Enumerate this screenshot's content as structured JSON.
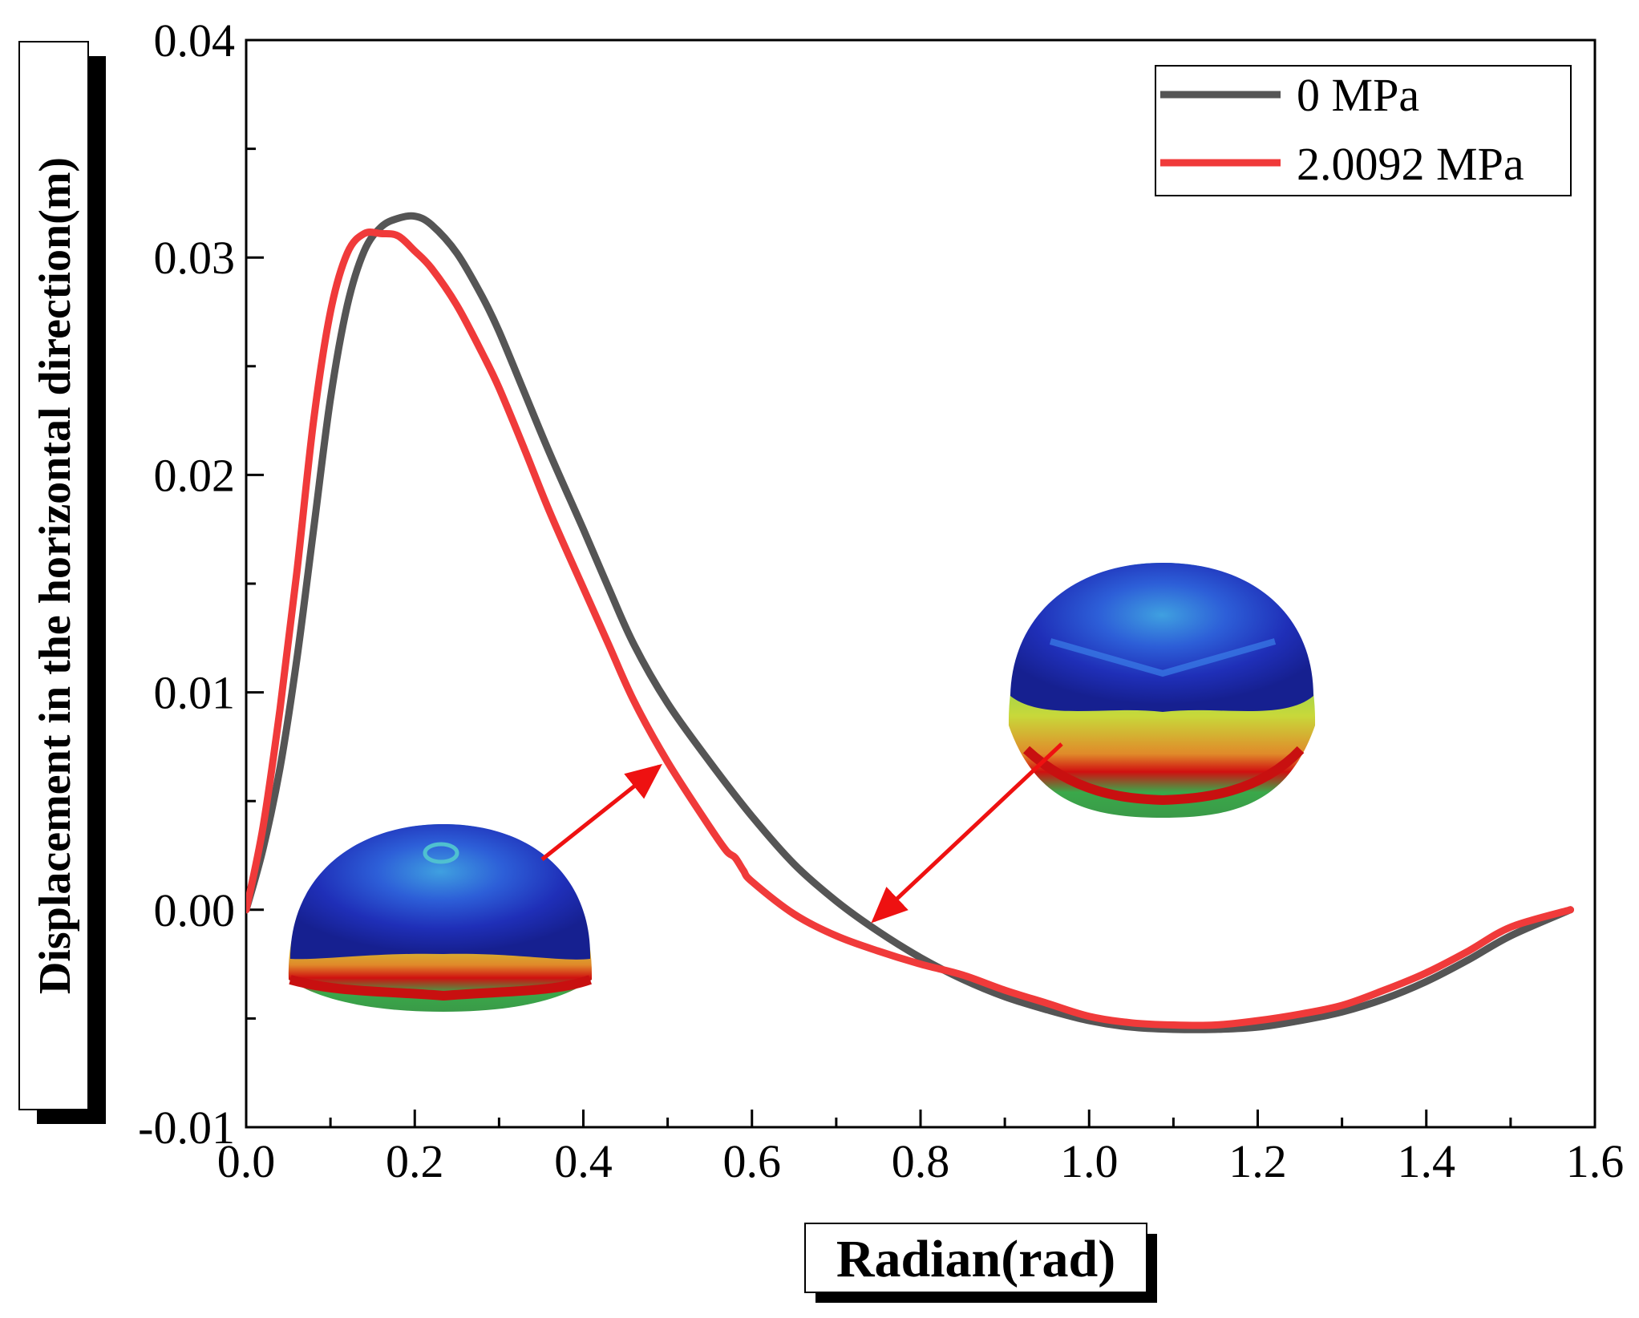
{
  "chart_data": {
    "type": "line",
    "title": "",
    "xlabel": "Radian(rad)",
    "ylabel": "Displacement in the horizontal direction(m)",
    "xlim": [
      0.0,
      1.6
    ],
    "ylim": [
      -0.01,
      0.04
    ],
    "x_ticks": [
      "0.0",
      "0.2",
      "0.4",
      "0.6",
      "0.8",
      "1.0",
      "1.2",
      "1.4",
      "1.6"
    ],
    "y_ticks": [
      "-0.01",
      "0.00",
      "0.01",
      "0.02",
      "0.03",
      "0.04"
    ],
    "x_tick_values": [
      0.0,
      0.2,
      0.4,
      0.6,
      0.8,
      1.0,
      1.2,
      1.4,
      1.6
    ],
    "y_tick_values": [
      -0.01,
      0.0,
      0.01,
      0.02,
      0.03,
      0.04
    ],
    "grid": false,
    "legend_position": "top-right",
    "series": [
      {
        "name": "0 MPa",
        "color": "#555555",
        "x": [
          0,
          0.02,
          0.04,
          0.06,
          0.08,
          0.1,
          0.12,
          0.14,
          0.16,
          0.18,
          0.2,
          0.22,
          0.25,
          0.28,
          0.3,
          0.33,
          0.36,
          0.4,
          0.43,
          0.46,
          0.5,
          0.55,
          0.6,
          0.65,
          0.7,
          0.75,
          0.8,
          0.85,
          0.9,
          0.95,
          1.0,
          1.05,
          1.1,
          1.15,
          1.2,
          1.25,
          1.3,
          1.35,
          1.4,
          1.45,
          1.5,
          1.571
        ],
        "y": [
          0,
          0.0028,
          0.0065,
          0.0115,
          0.0175,
          0.0235,
          0.0278,
          0.0303,
          0.0314,
          0.0318,
          0.0319,
          0.0315,
          0.0302,
          0.0282,
          0.0266,
          0.0238,
          0.021,
          0.0175,
          0.0148,
          0.0122,
          0.0095,
          0.0068,
          0.0043,
          0.0021,
          0.0004,
          -0.001,
          -0.0022,
          -0.0032,
          -0.004,
          -0.0046,
          -0.0051,
          -0.0054,
          -0.0055,
          -0.0055,
          -0.0054,
          -0.0051,
          -0.0047,
          -0.0041,
          -0.0033,
          -0.0023,
          -0.0012,
          0
        ]
      },
      {
        "name": "2.0092 MPa",
        "color": "#f03a3a",
        "x": [
          0,
          0.02,
          0.04,
          0.06,
          0.08,
          0.1,
          0.12,
          0.14,
          0.16,
          0.18,
          0.2,
          0.22,
          0.25,
          0.28,
          0.3,
          0.33,
          0.36,
          0.4,
          0.43,
          0.46,
          0.5,
          0.55,
          0.57,
          0.58,
          0.59,
          0.6,
          0.65,
          0.7,
          0.75,
          0.8,
          0.85,
          0.9,
          0.95,
          1.0,
          1.05,
          1.1,
          1.15,
          1.2,
          1.25,
          1.3,
          1.35,
          1.4,
          1.45,
          1.5,
          1.571
        ],
        "y": [
          0,
          0.0038,
          0.0092,
          0.0155,
          0.0225,
          0.0275,
          0.0302,
          0.0311,
          0.0311,
          0.031,
          0.0303,
          0.0295,
          0.0278,
          0.0256,
          0.024,
          0.0212,
          0.0183,
          0.0148,
          0.0122,
          0.0096,
          0.0068,
          0.0038,
          0.0027,
          0.0024,
          0.0018,
          0.0013,
          -0.0002,
          -0.0012,
          -0.0019,
          -0.0025,
          -0.003,
          -0.0037,
          -0.0043,
          -0.0049,
          -0.0052,
          -0.0053,
          -0.0053,
          -0.0051,
          -0.0048,
          -0.0044,
          -0.0037,
          -0.0029,
          -0.0019,
          -0.0008,
          0
        ]
      }
    ]
  }
}
